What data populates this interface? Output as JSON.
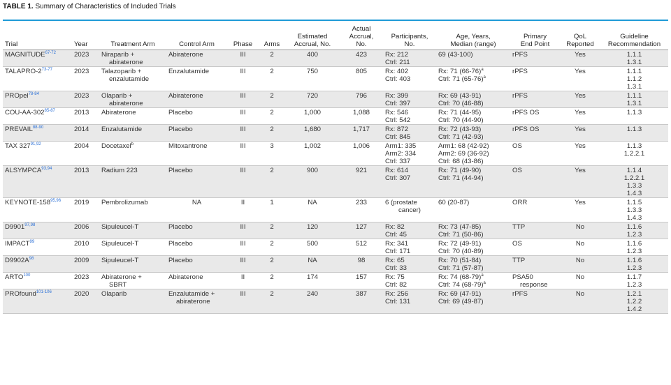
{
  "caption": {
    "label": "TABLE 1.",
    "text": "Summary of Characteristics of Included Trials"
  },
  "headers": {
    "trial": "Trial",
    "year": "Year",
    "treatment_arm": "Treatment Arm",
    "control_arm": "Control Arm",
    "phase": "Phase",
    "arms": "Arms",
    "estimated_accrual": [
      "Estimated",
      "Accrual, No."
    ],
    "actual_accrual": [
      "Actual",
      "Accrual,",
      "No."
    ],
    "participants": [
      "Participants,",
      "No."
    ],
    "age": [
      "Age, Years,",
      "Median (range)"
    ],
    "primary_end_point": [
      "Primary",
      "End Point"
    ],
    "qol": [
      "QoL",
      "Reported"
    ],
    "guideline": [
      "Guideline",
      "Recommendation"
    ]
  },
  "rows": [
    {
      "trial": "MAGNITUDE",
      "ref": "67-72",
      "year": "2023",
      "treatment": [
        "Niraparib +",
        "abiraterone"
      ],
      "control": [
        "Abiraterone"
      ],
      "phase": "III",
      "arms": "2",
      "est": "400",
      "actual": "423",
      "participants": [
        "Rx: 212",
        "Ctrl: 211"
      ],
      "age": [
        "69 (43-100)"
      ],
      "endpoint": [
        "rPFS"
      ],
      "qol": "Yes",
      "guideline": [
        "1.1.1",
        "1.3.1"
      ],
      "shade": true
    },
    {
      "trial": "TALAPRO-2",
      "ref": "73-77",
      "year": "2023",
      "treatment": [
        "Talazoparib +",
        "enzalutamide"
      ],
      "control": [
        "Enzalutamide"
      ],
      "phase": "III",
      "arms": "2",
      "est": "750",
      "actual": "805",
      "participants": [
        "Rx: 402",
        "Ctrl: 403"
      ],
      "age": [
        "Rx: 71 (66-76)",
        "Ctrl: 71 (65-76)"
      ],
      "age_note": "a",
      "endpoint": [
        "rPFS"
      ],
      "qol": "Yes",
      "guideline": [
        "1.1.1",
        "1.1.2",
        "1.3.1"
      ],
      "shade": false
    },
    {
      "trial": "PROpel",
      "ref": "78-84",
      "year": "2023",
      "treatment": [
        "Olaparib +",
        "abiraterone"
      ],
      "control": [
        "Abiraterone"
      ],
      "phase": "III",
      "arms": "2",
      "est": "720",
      "actual": "796",
      "participants": [
        "Rx: 399",
        "Ctrl: 397"
      ],
      "age": [
        "Rx: 69 (43-91)",
        "Ctrl: 70 (46-88)"
      ],
      "endpoint": [
        "rPFS"
      ],
      "qol": "Yes",
      "guideline": [
        "1.1.1",
        "1.3.1"
      ],
      "shade": true
    },
    {
      "trial": "COU-AA-302",
      "ref": "85-87",
      "year": "2013",
      "treatment": [
        "Abiraterone"
      ],
      "control": [
        "Placebo"
      ],
      "phase": "III",
      "arms": "2",
      "est": "1,000",
      "actual": "1,088",
      "participants": [
        "Rx: 546",
        "Ctrl: 542"
      ],
      "age": [
        "Rx: 71 (44-95)",
        "Ctrl: 70 (44-90)"
      ],
      "endpoint": [
        "rPFS OS"
      ],
      "qol": "Yes",
      "guideline": [
        "1.1.3"
      ],
      "shade": false
    },
    {
      "trial": "PREVAIL",
      "ref": "88-90",
      "year": "2014",
      "treatment": [
        "Enzalutamide"
      ],
      "control": [
        "Placebo"
      ],
      "phase": "III",
      "arms": "2",
      "est": "1,680",
      "actual": "1,717",
      "participants": [
        "Rx: 872",
        "Ctrl: 845"
      ],
      "age": [
        "Rx: 72 (43-93)",
        "Ctrl: 71 (42-93)"
      ],
      "endpoint": [
        "rPFS OS"
      ],
      "qol": "Yes",
      "guideline": [
        "1.1.3"
      ],
      "shade": true
    },
    {
      "trial": "TAX 327",
      "ref": "91,92",
      "year": "2004",
      "treatment": [
        "Docetaxel"
      ],
      "treatment_note": "b",
      "control": [
        "Mitoxantrone"
      ],
      "phase": "III",
      "arms": "3",
      "est": "1,002",
      "actual": "1,006",
      "participants": [
        "Arm1: 335",
        "Arm2: 334",
        "Ctrl: 337"
      ],
      "age": [
        "Arm1: 68 (42-92)",
        "Arm2: 69 (36-92)",
        "Ctrl: 68 (43-86)"
      ],
      "endpoint": [
        "OS"
      ],
      "qol": "Yes",
      "guideline": [
        "1.1.3",
        "1.2.2.1"
      ],
      "shade": false
    },
    {
      "trial": "ALSYMPCA",
      "ref": "93,94",
      "year": "2013",
      "treatment": [
        "Radium 223"
      ],
      "control": [
        "Placebo"
      ],
      "phase": "III",
      "arms": "2",
      "est": "900",
      "actual": "921",
      "participants": [
        "Rx: 614",
        "Ctrl: 307"
      ],
      "age": [
        "Rx: 71 (49-90)",
        "Ctrl: 71 (44-94)"
      ],
      "endpoint": [
        "OS"
      ],
      "qol": "Yes",
      "guideline": [
        "1.1.4",
        "1.2.2.1",
        "1.3.3",
        "1.4.3"
      ],
      "shade": true
    },
    {
      "trial": "KEYNOTE-158",
      "ref": "95,96",
      "year": "2019",
      "treatment": [
        "Pembrolizumab"
      ],
      "control": [
        "NA"
      ],
      "control_center": true,
      "phase": "II",
      "arms": "1",
      "est": "NA",
      "actual": "233",
      "participants": [
        "6 (prostate",
        "cancer)"
      ],
      "age": [
        "60 (20-87)"
      ],
      "endpoint": [
        "ORR"
      ],
      "qol": "Yes",
      "guideline": [
        "1.1.5",
        "1.3.3",
        "1.4.3"
      ],
      "shade": false
    },
    {
      "trial": "D9901",
      "ref": "97,98",
      "year": "2006",
      "treatment": [
        "Sipuleucel-T"
      ],
      "control": [
        "Placebo"
      ],
      "phase": "III",
      "arms": "2",
      "est": "120",
      "actual": "127",
      "participants": [
        "Rx: 82",
        "Ctrl: 45"
      ],
      "age": [
        "Rx: 73 (47-85)",
        "Ctrl: 71 (50-86)"
      ],
      "endpoint": [
        "TTP"
      ],
      "qol": "No",
      "guideline": [
        "1.1.6",
        "1.2.3"
      ],
      "shade": true
    },
    {
      "trial": "IMPACT",
      "ref": "99",
      "year": "2010",
      "treatment": [
        "Sipuleucel-T"
      ],
      "control": [
        "Placebo"
      ],
      "phase": "III",
      "arms": "2",
      "est": "500",
      "actual": "512",
      "participants": [
        "Rx: 341",
        "Ctrl: 171"
      ],
      "age": [
        "Rx: 72 (49-91)",
        "Ctrl: 70 (40-89)"
      ],
      "endpoint": [
        "OS"
      ],
      "qol": "No",
      "guideline": [
        "1.1.6",
        "1.2.3"
      ],
      "shade": false
    },
    {
      "trial": "D9902A",
      "ref": "98",
      "year": "2009",
      "treatment": [
        "Sipuleucel-T"
      ],
      "control": [
        "Placebo"
      ],
      "phase": "III",
      "arms": "2",
      "est": "NA",
      "actual": "98",
      "participants": [
        "Rx: 65",
        "Ctrl: 33"
      ],
      "age": [
        "Rx: 70 (51-84)",
        "Ctrl: 71 (57-87)"
      ],
      "endpoint": [
        "TTP"
      ],
      "qol": "No",
      "guideline": [
        "1.1.6",
        "1.2.3"
      ],
      "shade": true
    },
    {
      "trial": "ARTO",
      "ref": "100",
      "year": "2023",
      "treatment": [
        "Abiraterone +",
        "SBRT"
      ],
      "control": [
        "Abiraterone"
      ],
      "phase": "II",
      "arms": "2",
      "est": "174",
      "actual": "157",
      "participants": [
        "Rx: 75",
        "Ctrl: 82"
      ],
      "age": [
        "Rx: 74 (68-79)",
        "Ctrl: 74 (68-79)"
      ],
      "age_note": "a",
      "endpoint": [
        "PSA50",
        "response"
      ],
      "qol": "No",
      "guideline": [
        "1.1.7",
        "1.2.3"
      ],
      "shade": false
    },
    {
      "trial": "PROfound",
      "ref": "101-106",
      "year": "2020",
      "treatment": [
        "Olaparib"
      ],
      "control": [
        "Enzalutamide +",
        "abiraterone"
      ],
      "phase": "III",
      "arms": "2",
      "est": "240",
      "actual": "387",
      "participants": [
        "Rx: 256",
        "Ctrl: 131"
      ],
      "age": [
        "Rx: 69 (47-91)",
        "Ctrl: 69 (49-87)"
      ],
      "endpoint": [
        "rPFS"
      ],
      "qol": "No",
      "guideline": [
        "1.2.1",
        "1.2.2",
        "1.4.2"
      ],
      "shade": true
    }
  ]
}
